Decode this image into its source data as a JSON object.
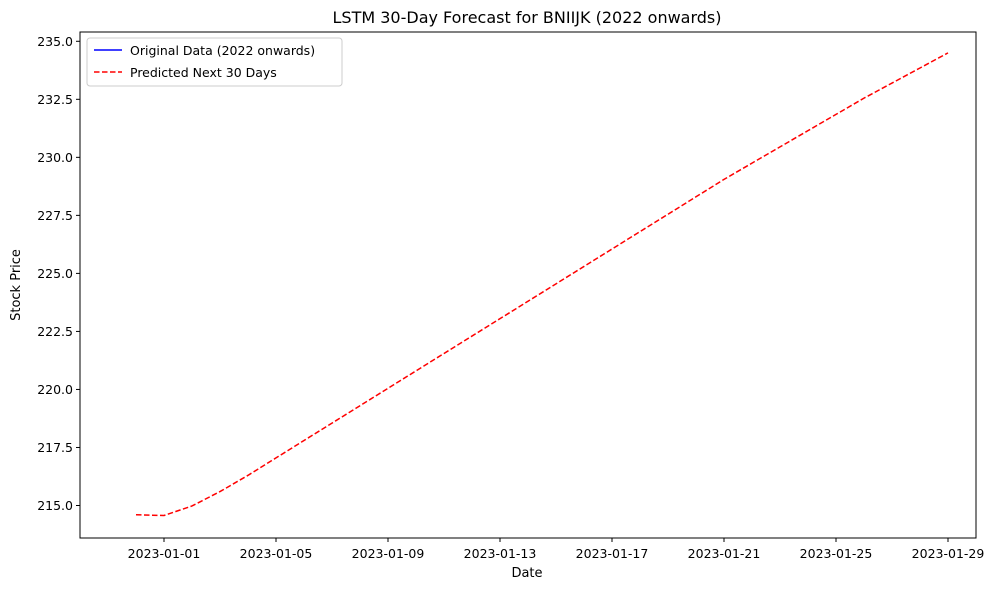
{
  "chart_data": {
    "type": "line",
    "title": "LSTM 30-Day Forecast for BNIIJK (2022 onwards)",
    "xlabel": "Date",
    "ylabel": "Stock Price",
    "x_ticks": [
      "2023-01-01",
      "2023-01-05",
      "2023-01-09",
      "2023-01-13",
      "2023-01-17",
      "2023-01-21",
      "2023-01-25",
      "2023-01-29"
    ],
    "y_ticks": [
      215.0,
      217.5,
      220.0,
      222.5,
      225.0,
      227.5,
      230.0,
      232.5,
      235.0
    ],
    "xlim": [
      "2022-12-29",
      "2023-01-30"
    ],
    "ylim": [
      213.6,
      235.4
    ],
    "grid": false,
    "legend_position": "upper left",
    "series": [
      {
        "name": "Original Data (2022 onwards)",
        "color": "#0000ff",
        "style": "solid",
        "x": [],
        "y": []
      },
      {
        "name": "Predicted Next 30 Days",
        "color": "#ff0000",
        "style": "dashed",
        "x": [
          "2022-12-31",
          "2023-01-01",
          "2023-01-02",
          "2023-01-03",
          "2023-01-04",
          "2023-01-05",
          "2023-01-06",
          "2023-01-07",
          "2023-01-08",
          "2023-01-09",
          "2023-01-10",
          "2023-01-11",
          "2023-01-12",
          "2023-01-13",
          "2023-01-14",
          "2023-01-15",
          "2023-01-16",
          "2023-01-17",
          "2023-01-18",
          "2023-01-19",
          "2023-01-20",
          "2023-01-21",
          "2023-01-22",
          "2023-01-23",
          "2023-01-24",
          "2023-01-25",
          "2023-01-26",
          "2023-01-27",
          "2023-01-28",
          "2023-01-29"
        ],
        "y": [
          214.6,
          214.57,
          214.98,
          215.6,
          216.3,
          217.05,
          217.8,
          218.55,
          219.3,
          220.05,
          220.8,
          221.55,
          222.3,
          223.05,
          223.8,
          224.55,
          225.3,
          226.05,
          226.8,
          227.55,
          228.3,
          229.05,
          229.75,
          230.45,
          231.15,
          231.85,
          232.55,
          233.2,
          233.85,
          234.5
        ]
      }
    ]
  }
}
